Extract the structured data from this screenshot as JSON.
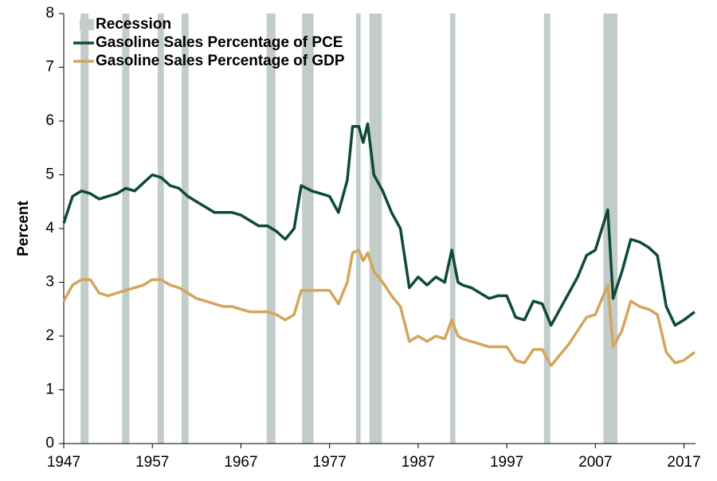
{
  "chart_data": {
    "type": "line",
    "y_label": "Percent",
    "recession": {
      "name": "Recession",
      "color": "#c2ccc8",
      "periods": [
        [
          1948.9,
          1949.8
        ],
        [
          1953.6,
          1954.4
        ],
        [
          1957.6,
          1958.3
        ],
        [
          1960.3,
          1961.1
        ],
        [
          1969.9,
          1970.9
        ],
        [
          1973.9,
          1975.2
        ],
        [
          1980.0,
          1980.5
        ],
        [
          1981.5,
          1982.9
        ],
        [
          1990.6,
          1991.2
        ],
        [
          2001.2,
          2001.9
        ],
        [
          2007.9,
          2009.5
        ]
      ]
    },
    "x": [
      1947,
      1948,
      1949,
      1950,
      1951,
      1952,
      1953,
      1954,
      1955,
      1956,
      1957,
      1958,
      1959,
      1960,
      1961,
      1962,
      1963,
      1964,
      1965,
      1966,
      1967,
      1968,
      1969,
      1970,
      1971,
      1972,
      1973,
      1973.8,
      1975,
      1976,
      1977,
      1978,
      1979,
      1979.6,
      1980.3,
      1980.8,
      1981.3,
      1982,
      1983,
      1984,
      1985,
      1986,
      1987,
      1988,
      1989,
      1990,
      1990.8,
      1991.5,
      1992,
      1993,
      1994,
      1995,
      1996,
      1997,
      1998,
      1999,
      2000,
      2001,
      2002,
      2003,
      2004,
      2005,
      2006,
      2007,
      2008.4,
      2009,
      2010,
      2011,
      2012,
      2013,
      2014,
      2015,
      2016,
      2017,
      2018.2
    ],
    "series": [
      {
        "name": "Gasoline Sales Percentage of PCE",
        "color": "#0d4a3a",
        "values": [
          4.1,
          4.6,
          4.7,
          4.65,
          4.55,
          4.6,
          4.65,
          4.75,
          4.7,
          4.85,
          5.0,
          4.95,
          4.8,
          4.75,
          4.6,
          4.5,
          4.4,
          4.3,
          4.3,
          4.3,
          4.25,
          4.15,
          4.05,
          4.05,
          3.95,
          3.8,
          4.0,
          4.8,
          4.7,
          4.65,
          4.6,
          4.3,
          4.9,
          5.9,
          5.9,
          5.6,
          5.95,
          5.0,
          4.7,
          4.3,
          4.0,
          2.9,
          3.1,
          2.95,
          3.1,
          3.0,
          3.6,
          3.0,
          2.95,
          2.9,
          2.8,
          2.7,
          2.75,
          2.75,
          2.35,
          2.3,
          2.65,
          2.6,
          2.2,
          2.5,
          2.8,
          3.1,
          3.5,
          3.6,
          4.35,
          2.7,
          3.2,
          3.8,
          3.75,
          3.65,
          3.5,
          2.55,
          2.2,
          2.3,
          2.45
        ]
      },
      {
        "name": "Gasoline Sales Percentage of GDP",
        "color": "#d4a55a",
        "values": [
          2.65,
          2.95,
          3.05,
          3.05,
          2.8,
          2.75,
          2.8,
          2.85,
          2.9,
          2.95,
          3.05,
          3.05,
          2.95,
          2.9,
          2.8,
          2.7,
          2.65,
          2.6,
          2.55,
          2.55,
          2.5,
          2.45,
          2.45,
          2.45,
          2.4,
          2.3,
          2.4,
          2.85,
          2.85,
          2.85,
          2.85,
          2.6,
          3.0,
          3.55,
          3.6,
          3.4,
          3.55,
          3.2,
          3.0,
          2.75,
          2.55,
          1.9,
          2.0,
          1.9,
          2.0,
          1.95,
          2.3,
          2.0,
          1.95,
          1.9,
          1.85,
          1.8,
          1.8,
          1.8,
          1.55,
          1.5,
          1.75,
          1.75,
          1.45,
          1.65,
          1.85,
          2.1,
          2.35,
          2.4,
          2.95,
          1.8,
          2.1,
          2.65,
          2.55,
          2.5,
          2.4,
          1.7,
          1.5,
          1.55,
          1.7
        ]
      }
    ],
    "xlim": [
      1947,
      2018.3
    ],
    "xticks": [
      1947,
      1957,
      1967,
      1977,
      1987,
      1997,
      2007,
      2017
    ],
    "ylim": [
      0,
      8
    ],
    "yticks": [
      0,
      1,
      2,
      3,
      4,
      5,
      6,
      7,
      8
    ]
  }
}
